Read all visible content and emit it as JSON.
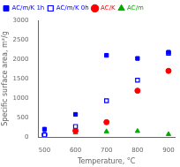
{
  "chart_data": {
    "type": "scatter",
    "xlabel": "Temperature, °C",
    "ylabel": "Specific surface area, m²/g",
    "x": [
      500,
      600,
      700,
      800,
      900
    ],
    "series": [
      {
        "name": "AC/m/K 1h",
        "color": "#0000ff",
        "marker": "square",
        "values": [
          200,
          580,
          2100,
          2020,
          2180
        ]
      },
      {
        "name": "AC/m/K 0h",
        "color": "#0000ff",
        "marker": "open_square",
        "values": [
          50,
          270,
          930,
          1460,
          2150
        ]
      },
      {
        "name": "AC/K",
        "color": "#ff0000",
        "marker": "circle",
        "values": [
          60,
          160,
          380,
          1190,
          1700
        ]
      },
      {
        "name": "AC/m",
        "color": "#00aa00",
        "marker": "triangle",
        "values": [
          30,
          110,
          140,
          150,
          70
        ]
      }
    ],
    "xlim": [
      480,
      920
    ],
    "ylim": [
      0,
      3000
    ],
    "xticks": [
      500,
      600,
      700,
      800,
      900
    ],
    "yticks": [
      0,
      500,
      1000,
      1500,
      2000,
      2500,
      3000
    ],
    "grid": false,
    "legend": "upper left"
  }
}
